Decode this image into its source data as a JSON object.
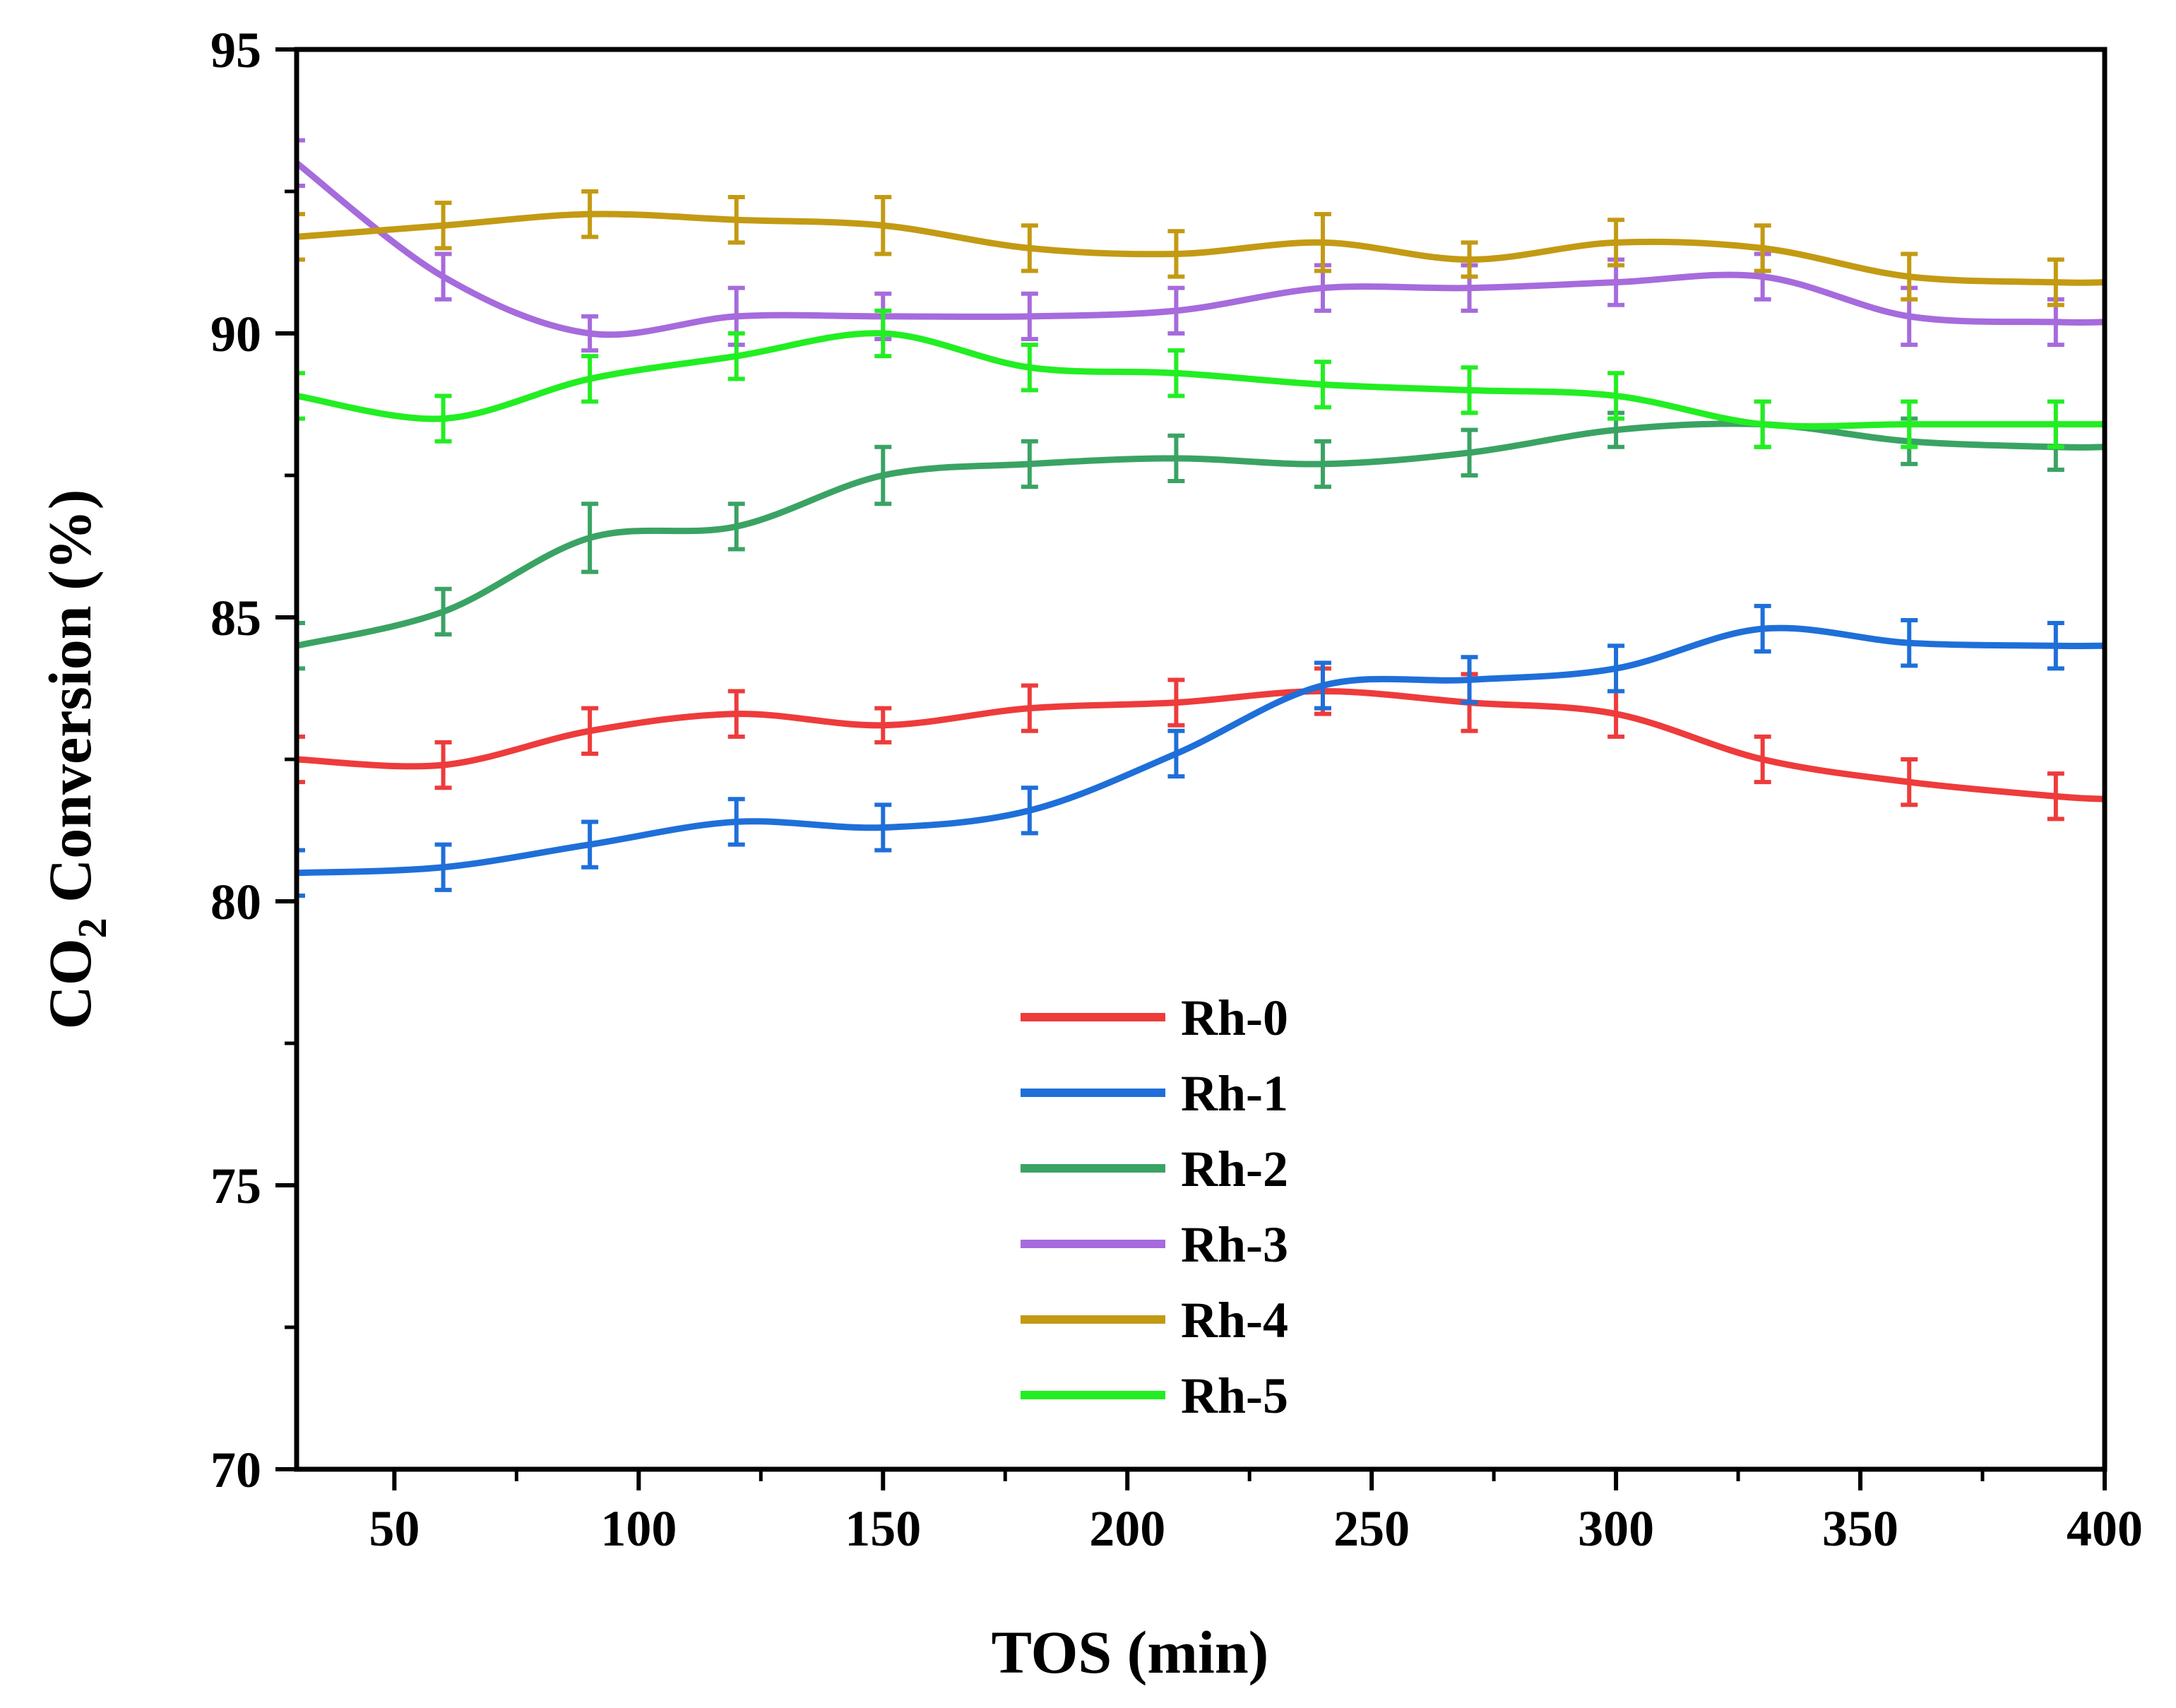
{
  "chart_data": {
    "type": "line",
    "title": "",
    "xlabel": "TOS (min)",
    "ylabel_main": "CO",
    "ylabel_sub": "2",
    "ylabel_rest": " Conversion (%)",
    "xlim": [
      30,
      400
    ],
    "ylim": [
      70,
      95
    ],
    "x_ticks": [
      50,
      100,
      150,
      200,
      250,
      300,
      350,
      400
    ],
    "x_tick_labels": [
      "50",
      "100",
      "150",
      "200",
      "250",
      "300",
      "350",
      "400"
    ],
    "y_ticks": [
      70,
      75,
      80,
      85,
      90,
      95
    ],
    "y_tick_labels": [
      "70",
      "75",
      "80",
      "85",
      "90",
      "95"
    ],
    "grid": false,
    "legend_position": "bottom-center",
    "x": [
      30,
      60,
      90,
      120,
      150,
      180,
      210,
      240,
      270,
      300,
      330,
      360,
      390,
      400
    ],
    "series": [
      {
        "name": "Rh-0",
        "color": "#ee3b3b",
        "values": [
          82.5,
          82.4,
          83.0,
          83.3,
          83.1,
          83.4,
          83.5,
          83.7,
          83.5,
          83.3,
          82.5,
          82.1,
          81.85,
          81.8
        ],
        "errors": [
          0.4,
          0.4,
          0.4,
          0.4,
          0.3,
          0.4,
          0.4,
          0.4,
          0.5,
          0.4,
          0.4,
          0.4,
          0.4,
          null
        ]
      },
      {
        "name": "Rh-1",
        "color": "#1f6fd9",
        "values": [
          80.5,
          80.6,
          81.0,
          81.4,
          81.3,
          81.6,
          82.6,
          83.8,
          83.9,
          84.1,
          84.8,
          84.55,
          84.5,
          84.5
        ],
        "errors": [
          0.4,
          0.4,
          0.4,
          0.4,
          0.4,
          0.4,
          0.4,
          0.4,
          0.4,
          0.4,
          0.4,
          0.4,
          0.4,
          null
        ]
      },
      {
        "name": "Rh-2",
        "color": "#3aa364",
        "values": [
          84.5,
          85.1,
          86.4,
          86.6,
          87.5,
          87.7,
          87.8,
          87.7,
          87.9,
          88.3,
          88.4,
          88.1,
          88.0,
          88.0
        ],
        "errors": [
          0.4,
          0.4,
          0.6,
          0.4,
          0.5,
          0.4,
          0.4,
          0.4,
          0.4,
          0.3,
          0.4,
          0.4,
          0.4,
          null
        ]
      },
      {
        "name": "Rh-3",
        "color": "#a66bdc",
        "values": [
          93.0,
          91.0,
          90.0,
          90.3,
          90.3,
          90.3,
          90.4,
          90.8,
          90.8,
          90.9,
          91.0,
          90.3,
          90.2,
          90.2
        ],
        "errors": [
          0.4,
          0.4,
          0.3,
          0.5,
          0.4,
          0.4,
          0.4,
          0.4,
          0.4,
          0.4,
          0.4,
          0.5,
          0.4,
          null
        ]
      },
      {
        "name": "Rh-4",
        "color": "#c39a13",
        "values": [
          91.7,
          91.9,
          92.1,
          92.0,
          91.9,
          91.5,
          91.4,
          91.6,
          91.3,
          91.6,
          91.5,
          91.0,
          90.9,
          90.9
        ],
        "errors": [
          0.4,
          0.4,
          0.4,
          0.4,
          0.5,
          0.4,
          0.4,
          0.5,
          0.3,
          0.4,
          0.4,
          0.4,
          0.4,
          null
        ]
      },
      {
        "name": "Rh-5",
        "color": "#22ee22",
        "values": [
          88.9,
          88.5,
          89.2,
          89.6,
          90.0,
          89.4,
          89.3,
          89.1,
          89.0,
          88.9,
          88.4,
          88.4,
          88.4,
          88.4
        ],
        "errors": [
          0.4,
          0.4,
          0.4,
          0.4,
          0.4,
          0.4,
          0.4,
          0.4,
          0.4,
          0.4,
          0.4,
          0.4,
          0.4,
          null
        ]
      }
    ]
  }
}
